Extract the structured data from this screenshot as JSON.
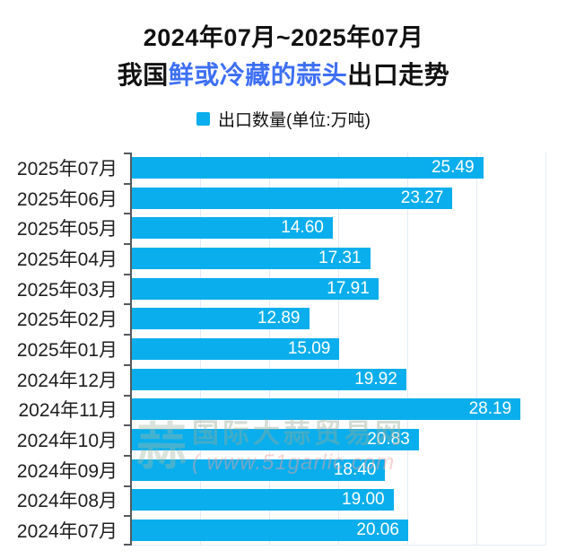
{
  "header": {
    "title_line1": "2024年07月~2025年07月",
    "title_line2_prefix": "我国",
    "title_line2_highlight": "鲜或冷藏的蒜头",
    "title_line2_suffix": "出口走势"
  },
  "legend": {
    "label": "出口数量(单位:万吨)"
  },
  "watermark": {
    "logo_glyph": "蒜",
    "line1": "国际大蒜贸易网",
    "line2": "( www.51garlic.com"
  },
  "colors": {
    "bar": "#0aaeec",
    "title_highlight": "#3e6ff5",
    "grid": "#e3eaf6",
    "axis": "#56595e"
  },
  "chart_data": {
    "type": "bar",
    "orientation": "horizontal",
    "title": "2024年07月~2025年07月 我国鲜或冷藏的蒜头出口走势",
    "series_name": "出口数量(单位:万吨)",
    "xlabel": "",
    "ylabel": "",
    "categories": [
      "2025年07月",
      "2025年06月",
      "2025年05月",
      "2025年04月",
      "2025年03月",
      "2025年02月",
      "2025年01月",
      "2024年12月",
      "2024年11月",
      "2024年10月",
      "2024年09月",
      "2024年08月",
      "2024年07月"
    ],
    "values": [
      25.49,
      23.27,
      14.6,
      17.31,
      17.91,
      12.89,
      15.09,
      19.92,
      28.19,
      20.83,
      18.4,
      19.0,
      20.06
    ],
    "value_labels": [
      "25.49",
      "23.27",
      "14.60",
      "17.31",
      "17.91",
      "12.89",
      "15.09",
      "19.92",
      "28.19",
      "20.83",
      "18.40",
      "19.00",
      "20.06"
    ],
    "xlim": [
      0,
      30
    ],
    "grid_interval": 5,
    "grid": "on",
    "legend_position": "top",
    "value_label_position": "inside-end",
    "value_label_color": "#ffffff"
  }
}
